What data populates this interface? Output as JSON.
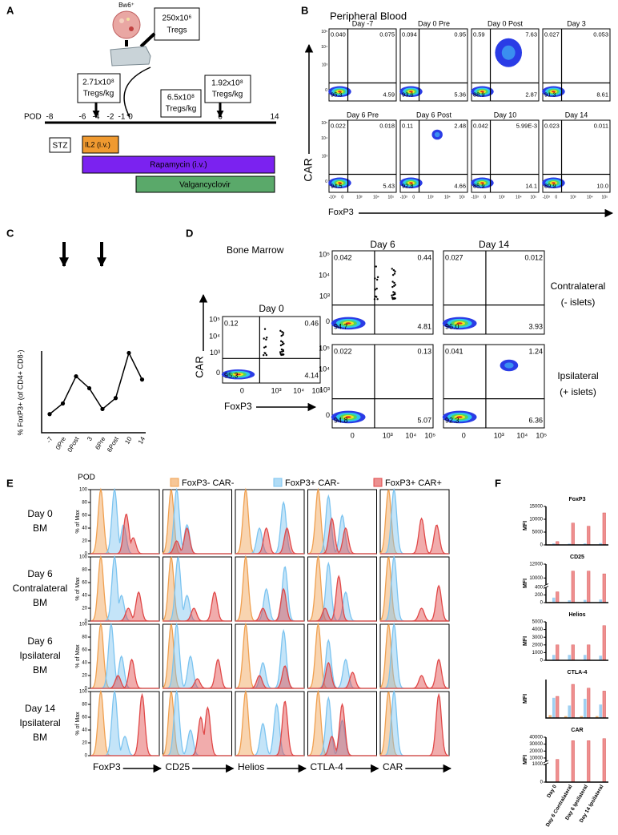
{
  "letters": [
    "A",
    "B",
    "C",
    "D",
    "E",
    "F"
  ],
  "panel_a": {
    "cell_label": "Bw6⁺",
    "vial_dose": [
      "250x10⁶",
      "Tregs"
    ],
    "doses": [
      {
        "amount": "2.71x10⁸",
        "unit": "Tregs/kg"
      },
      {
        "amount": "6.5x10⁸",
        "unit": "Tregs/kg"
      },
      {
        "amount": "1.92x10⁸",
        "unit": "Tregs/kg"
      }
    ],
    "axis_label": "POD",
    "days": [
      "-8",
      "-6",
      "-4",
      "-2",
      "-1",
      "0",
      "6",
      "14"
    ],
    "treatments": [
      "STZ",
      "IL2 (i.v.)",
      "Rapamycin (i.v.)",
      "Valgancyclovir"
    ]
  },
  "panel_b": {
    "title": "Peripheral Blood",
    "y_label": "CAR",
    "x_label": "FoxP3",
    "yticks": [
      "10⁵",
      "10⁴",
      "10³",
      "0"
    ],
    "xticks": [
      "-10³",
      "0",
      "10³",
      "10⁴",
      "10⁵"
    ],
    "plots": [
      {
        "title": "Day -7",
        "quadrants": [
          "0.040",
          "0.075",
          "95.3",
          "4.59"
        ]
      },
      {
        "title": "Day 0 Pre",
        "quadrants": [
          "0.094",
          "0.95",
          "93.6",
          "5.36"
        ]
      },
      {
        "title": "Day 0 Post",
        "quadrants": [
          "0.59",
          "7.63",
          "88.9",
          "2.87"
        ]
      },
      {
        "title": "Day 3",
        "quadrants": [
          "0.027",
          "0.053",
          "91.3",
          "8.61"
        ]
      },
      {
        "title": "Day 6 Pre",
        "quadrants": [
          "0.022",
          "0.018",
          "94.5",
          "5.43"
        ]
      },
      {
        "title": "Day 6 Post",
        "quadrants": [
          "0.11",
          "2.48",
          "92.8",
          "4.66"
        ]
      },
      {
        "title": "Day 10",
        "quadrants": [
          "0.042",
          "5.99E-3",
          "85.9",
          "14.1"
        ]
      },
      {
        "title": "Day 14",
        "quadrants": [
          "0.023",
          "0.011",
          "89.9",
          "10.0"
        ]
      }
    ]
  },
  "panel_d": {
    "title": "Bone Marrow",
    "y_label": "CAR",
    "x_label": "FoxP3",
    "yticks": [
      "10⁵",
      "10⁴",
      "10³",
      "0"
    ],
    "xticks": [
      "0",
      "10³",
      "10⁴",
      "10⁵"
    ],
    "column_titles": [
      "Day 6",
      "Day 14"
    ],
    "row_labels": [
      [
        "Contralateral",
        "(- islets)"
      ],
      [
        "Ipsilateral",
        "(+ islets)"
      ]
    ],
    "plots": [
      {
        "title": "Day 0",
        "quadrants": [
          "0.12",
          "0.46",
          "95.3",
          "4.14"
        ]
      },
      {
        "quadrants": [
          "0.042",
          "0.44",
          "94.7",
          "4.81"
        ]
      },
      {
        "quadrants": [
          "0.027",
          "0.012",
          "96.0",
          "3.93"
        ]
      },
      {
        "quadrants": [
          "0.022",
          "0.13",
          "94.8",
          "5.07"
        ]
      },
      {
        "quadrants": [
          "0.041",
          "1.24",
          "92.3",
          "6.36"
        ]
      }
    ]
  },
  "panel_e": {
    "legend": [
      {
        "name": "FoxP3- CAR-",
        "color": "#f0a050"
      },
      {
        "name": "FoxP3+ CAR-",
        "color": "#7cc4f0"
      },
      {
        "name": "FoxP3+ CAR+",
        "color": "#e04848"
      }
    ],
    "rows": [
      [
        "Day 0",
        "BM"
      ],
      [
        "Day 6",
        "Contralateral",
        "BM"
      ],
      [
        "Day 6",
        "Ipsilateral",
        "BM"
      ],
      [
        "Day 14",
        "Ipsilateral",
        "BM"
      ]
    ],
    "y_label": "% of Max",
    "yticks": [
      0,
      20,
      40,
      60,
      80,
      100
    ],
    "markers": [
      "FoxP3",
      "CD25",
      "Helios",
      "CTLA-4",
      "CAR"
    ],
    "histograms": [
      [
        [
          [
            [
              0.15,
              100
            ]
          ],
          [
            [
              0.35,
              100
            ],
            [
              0.48,
              45
            ]
          ],
          [
            [
              0.52,
              62
            ],
            [
              0.62,
              25
            ]
          ]
        ],
        [
          [
            [
              0.12,
              100
            ]
          ],
          [
            [
              0.2,
              100
            ],
            [
              0.35,
              45
            ]
          ],
          [
            [
              0.35,
              40
            ],
            [
              0.2,
              20
            ]
          ]
        ],
        [
          [
            [
              0.15,
              100
            ]
          ],
          [
            [
              0.7,
              80
            ],
            [
              0.35,
              40
            ]
          ],
          [
            [
              0.45,
              40
            ],
            [
              0.75,
              40
            ]
          ]
        ],
        [
          [
            [
              0.15,
              100
            ]
          ],
          [
            [
              0.3,
              90
            ],
            [
              0.5,
              60
            ]
          ],
          [
            [
              0.35,
              55
            ],
            [
              0.55,
              40
            ]
          ]
        ],
        [
          [
            [
              0.12,
              100
            ]
          ],
          [
            [
              0.2,
              100
            ]
          ],
          [
            [
              0.6,
              55
            ],
            [
              0.82,
              45
            ]
          ]
        ]
      ],
      [
        [
          [
            [
              0.15,
              100
            ]
          ],
          [
            [
              0.35,
              100
            ],
            [
              0.45,
              40
            ]
          ],
          [
            [
              0.7,
              45
            ],
            [
              0.55,
              20
            ]
          ]
        ],
        [
          [
            [
              0.12,
              100
            ]
          ],
          [
            [
              0.22,
              100
            ],
            [
              0.35,
              40
            ]
          ],
          [
            [
              0.75,
              45
            ],
            [
              0.45,
              20
            ]
          ]
        ],
        [
          [
            [
              0.15,
              100
            ]
          ],
          [
            [
              0.72,
              85
            ],
            [
              0.45,
              50
            ]
          ],
          [
            [
              0.7,
              50
            ],
            [
              0.4,
              20
            ]
          ]
        ],
        [
          [
            [
              0.15,
              100
            ]
          ],
          [
            [
              0.3,
              90
            ],
            [
              0.55,
              45
            ]
          ],
          [
            [
              0.45,
              70
            ],
            [
              0.25,
              20
            ]
          ]
        ],
        [
          [
            [
              0.12,
              100
            ]
          ],
          [
            [
              0.2,
              100
            ]
          ],
          [
            [
              0.85,
              55
            ],
            [
              0.6,
              20
            ]
          ]
        ]
      ],
      [
        [
          [
            [
              0.15,
              100
            ]
          ],
          [
            [
              0.3,
              100
            ],
            [
              0.45,
              50
            ]
          ],
          [
            [
              0.6,
              45
            ],
            [
              0.4,
              20
            ]
          ]
        ],
        [
          [
            [
              0.12,
              100
            ]
          ],
          [
            [
              0.2,
              100
            ],
            [
              0.4,
              50
            ]
          ],
          [
            [
              0.8,
              45
            ],
            [
              0.5,
              15
            ]
          ]
        ],
        [
          [
            [
              0.15,
              100
            ]
          ],
          [
            [
              0.7,
              90
            ],
            [
              0.4,
              40
            ]
          ],
          [
            [
              0.72,
              35
            ],
            [
              0.35,
              20
            ]
          ]
        ],
        [
          [
            [
              0.15,
              100
            ]
          ],
          [
            [
              0.3,
              75
            ],
            [
              0.55,
              45
            ]
          ],
          [
            [
              0.3,
              40
            ],
            [
              0.65,
              25
            ]
          ]
        ],
        [
          [
            [
              0.12,
              100
            ]
          ],
          [
            [
              0.2,
              100
            ]
          ],
          [
            [
              0.85,
              45
            ],
            [
              0.6,
              20
            ]
          ]
        ]
      ],
      [
        [
          [
            [
              0.15,
              100
            ]
          ],
          [
            [
              0.35,
              100
            ],
            [
              0.5,
              30
            ]
          ],
          [
            [
              0.75,
              95
            ]
          ]
        ],
        [
          [
            [
              0.12,
              100
            ]
          ],
          [
            [
              0.2,
              100
            ],
            [
              0.4,
              40
            ]
          ],
          [
            [
              0.65,
              75
            ],
            [
              0.55,
              60
            ]
          ]
        ],
        [
          [
            [
              0.15,
              100
            ]
          ],
          [
            [
              0.6,
              80
            ],
            [
              0.4,
              50
            ]
          ],
          [
            [
              0.72,
              85
            ]
          ]
        ],
        [
          [
            [
              0.15,
              100
            ]
          ],
          [
            [
              0.3,
              90
            ],
            [
              0.5,
              55
            ]
          ],
          [
            [
              0.5,
              80
            ],
            [
              0.35,
              30
            ]
          ]
        ],
        [
          [
            [
              0.12,
              100
            ]
          ],
          [
            [
              0.2,
              100
            ]
          ],
          [
            [
              0.85,
              95
            ]
          ]
        ]
      ]
    ]
  },
  "chart_data": [
    {
      "type": "line",
      "y_label": "% FoxP3+ (of CD4+ CD8-)",
      "x_label": "POD",
      "color": "#000000",
      "categories": [
        "-7",
        "0Pre",
        "0Post",
        "3",
        "6Pre",
        "6Post",
        "10",
        "14"
      ],
      "values": [
        4.67,
        6.31,
        10.5,
        8.66,
        5.45,
        7.14,
        14.1,
        10.0
      ],
      "ylim": [
        1.8,
        14.4
      ]
    },
    {
      "type": "bar",
      "title": "FoxP3",
      "y_label": "MFI",
      "ylim": [
        0,
        15000
      ],
      "yticks": [
        0,
        5000,
        10000,
        15000
      ],
      "series": [
        {
          "color": "#f5b77a",
          "values": [
            200,
            100,
            100,
            100
          ]
        },
        {
          "color": "#9fd0f2",
          "values": [
            600,
            500,
            600,
            700
          ]
        },
        {
          "color": "#ef8f8f",
          "values": [
            1300,
            8500,
            7300,
            12500
          ]
        }
      ]
    },
    {
      "type": "bar",
      "title": "CD25",
      "y_label": "MFI",
      "ylim": [
        0,
        12000
      ],
      "axis_break": [
        400,
        9000
      ],
      "yticks": [
        0,
        200,
        400,
        10000,
        12000
      ],
      "series": [
        {
          "color": "#f5b77a",
          "values": [
            20,
            10,
            10,
            10
          ]
        },
        {
          "color": "#9fd0f2",
          "values": [
            130,
            60,
            70,
            80
          ]
        },
        {
          "color": "#ef8f8f",
          "values": [
            280,
            11000,
            11000,
            10600
          ]
        }
      ]
    },
    {
      "type": "bar",
      "title": "Helios",
      "y_label": "MFI",
      "ylim": [
        0,
        5000
      ],
      "yticks": [
        0,
        1000,
        2000,
        3000,
        4000,
        5000
      ],
      "series": [
        {
          "color": "#f5b77a",
          "values": [
            50,
            50,
            50,
            50
          ]
        },
        {
          "color": "#9fd0f2",
          "values": [
            700,
            700,
            700,
            600
          ]
        },
        {
          "color": "#ef8f8f",
          "values": [
            2000,
            2000,
            2000,
            4500
          ]
        }
      ]
    },
    {
      "type": "bar",
      "title": "CTLA-4",
      "y_label": "MFI",
      "ylim": [
        0,
        400
      ],
      "series": [
        {
          "color": "#f5b77a",
          "values": [
            30,
            20,
            20,
            20
          ]
        },
        {
          "color": "#9fd0f2",
          "values": [
            210,
            130,
            200,
            140
          ]
        },
        {
          "color": "#ef8f8f",
          "values": [
            225,
            350,
            310,
            280
          ]
        }
      ]
    },
    {
      "type": "bar",
      "title": "CAR",
      "y_label": "MFI",
      "ylim": [
        0,
        40000
      ],
      "axis_break": [
        1000,
        5000
      ],
      "yticks": [
        0,
        1000,
        10000,
        20000,
        30000,
        40000
      ],
      "categories": [
        "Day 0",
        "Day 6 Contralateral",
        "Day 6 Ipsilateral",
        "Day 14 Ipsilateral"
      ],
      "series": [
        {
          "color": "#f5b77a",
          "values": [
            10,
            10,
            10,
            10
          ]
        },
        {
          "color": "#9fd0f2",
          "values": [
            10,
            20,
            20,
            20
          ]
        },
        {
          "color": "#ef8f8f",
          "values": [
            8000,
            35000,
            35000,
            38000
          ]
        }
      ]
    }
  ]
}
